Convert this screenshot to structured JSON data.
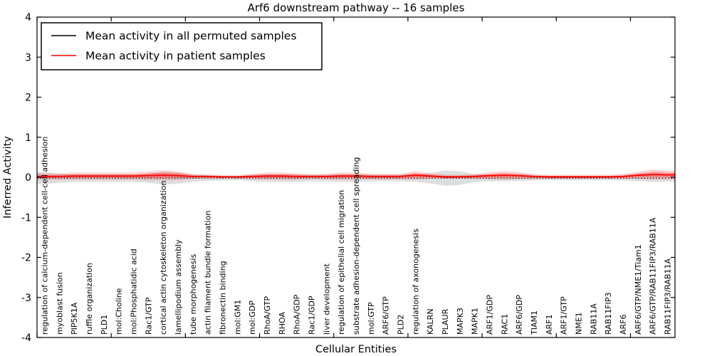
{
  "chart_data": {
    "type": "line",
    "title": "Arf6 downstream pathway -- 16 samples",
    "xlabel": "Cellular Entities",
    "ylabel": "Inferred Activity",
    "ylim": [
      -4,
      4
    ],
    "yticks": [
      -4,
      -3,
      -2,
      -1,
      0,
      1,
      2,
      3,
      4
    ],
    "ytick_labels": [
      "-4",
      "-3",
      "-2",
      "-1",
      "0",
      "1",
      "2",
      "3",
      "4"
    ],
    "grid": false,
    "legend_position": "upper left",
    "legend": [
      {
        "label": "Mean activity in all permuted samples",
        "color": "#000000"
      },
      {
        "label": "Mean activity in patient samples",
        "color": "#ff0000"
      }
    ],
    "colors": {
      "permuted_line": "#000000",
      "patient_line": "#ff0000",
      "permuted_band": "#c8c8c8",
      "patient_band": "#ff0000"
    },
    "categories": [
      "regulation of calcium-dependent cell-cell adhesion",
      "myoblast fusion",
      "PIP5K1A",
      "ruffle organization",
      "PLD1",
      "mol:Choline",
      "mol:Phosphatidic acid",
      "Rac1/GTP",
      "cortical actin cytoskeleton organization",
      "lamellipodium assembly",
      "tube morphogenesis",
      "actin filament bundle formation",
      "fibronectin binding",
      "mol:GM1",
      "mol:GDP",
      "RhoA/GTP",
      "RHOA",
      "RhoA/GDP",
      "Rac1/GDP",
      "liver development",
      "regulation of epithelial cell migration",
      "substrate adhesion-dependent cell spreading",
      "mol:GTP",
      "ARF6/GTP",
      "PLD2",
      "regulation of axonogenesis",
      "KALRN",
      "PLAUR",
      "MAPK3",
      "MAPK1",
      "ARF1/GDP",
      "RAC1",
      "ARF6/GDP",
      "TIAM1",
      "ARF1",
      "ARF1/GTP",
      "NME1",
      "RAB11A",
      "RAB11FIP3",
      "ARF6",
      "ARF6/GTP/NME1/Tiam1",
      "ARF6/GTP/RAB11FIP3/RAB11A",
      "RAB11FIP3/RAB11A"
    ],
    "series": [
      {
        "name": "Mean activity in all permuted samples",
        "color": "#000000",
        "style": "dotted",
        "values": [
          -0.02,
          -0.02,
          -0.02,
          -0.02,
          -0.02,
          -0.02,
          -0.02,
          -0.02,
          -0.02,
          -0.02,
          -0.02,
          -0.02,
          -0.02,
          -0.02,
          -0.02,
          -0.02,
          -0.02,
          -0.02,
          -0.02,
          -0.02,
          -0.02,
          -0.02,
          -0.02,
          -0.02,
          -0.02,
          -0.02,
          -0.02,
          -0.02,
          -0.02,
          -0.02,
          -0.02,
          -0.02,
          -0.02,
          -0.02,
          -0.02,
          -0.02,
          -0.02,
          -0.02,
          -0.02,
          -0.02,
          -0.02,
          -0.02,
          -0.02
        ]
      },
      {
        "name": "Mean activity in patient samples",
        "color": "#ff0000",
        "style": "solid",
        "values": [
          0.02,
          0.02,
          0.03,
          0.03,
          0.03,
          0.03,
          0.03,
          0.04,
          0.05,
          0.04,
          0.02,
          0.02,
          0.01,
          0.01,
          0.02,
          0.03,
          0.03,
          0.02,
          0.02,
          0.02,
          0.03,
          0.03,
          0.02,
          0.02,
          0.02,
          0.05,
          0.03,
          0.01,
          0.01,
          0.02,
          0.04,
          0.05,
          0.04,
          0.02,
          0.01,
          0.01,
          0.01,
          0.01,
          0.01,
          0.02,
          0.05,
          0.07,
          0.06
        ]
      }
    ],
    "bands": [
      {
        "name": "permuted-activity-range",
        "color": "#c8c8c8",
        "opacity": 0.6,
        "center_series": 0,
        "half_widths": [
          0.15,
          0.11,
          0.09,
          0.09,
          0.09,
          0.09,
          0.09,
          0.11,
          0.16,
          0.14,
          0.09,
          0.07,
          0.06,
          0.05,
          0.08,
          0.09,
          0.09,
          0.09,
          0.08,
          0.08,
          0.09,
          0.09,
          0.08,
          0.08,
          0.08,
          0.09,
          0.13,
          0.19,
          0.17,
          0.1,
          0.08,
          0.08,
          0.07,
          0.06,
          0.05,
          0.05,
          0.05,
          0.05,
          0.05,
          0.06,
          0.07,
          0.09,
          0.09
        ]
      },
      {
        "name": "patient-activity-range",
        "color": "#ff0000",
        "opacity": 0.16,
        "center_series": 1,
        "half_widths": [
          0.08,
          0.08,
          0.09,
          0.09,
          0.09,
          0.09,
          0.09,
          0.11,
          0.13,
          0.11,
          0.06,
          0.05,
          0.04,
          0.04,
          0.07,
          0.09,
          0.09,
          0.08,
          0.06,
          0.07,
          0.09,
          0.09,
          0.07,
          0.07,
          0.07,
          0.11,
          0.07,
          0.05,
          0.05,
          0.06,
          0.09,
          0.11,
          0.09,
          0.06,
          0.05,
          0.05,
          0.05,
          0.05,
          0.05,
          0.06,
          0.09,
          0.13,
          0.11
        ]
      }
    ]
  }
}
